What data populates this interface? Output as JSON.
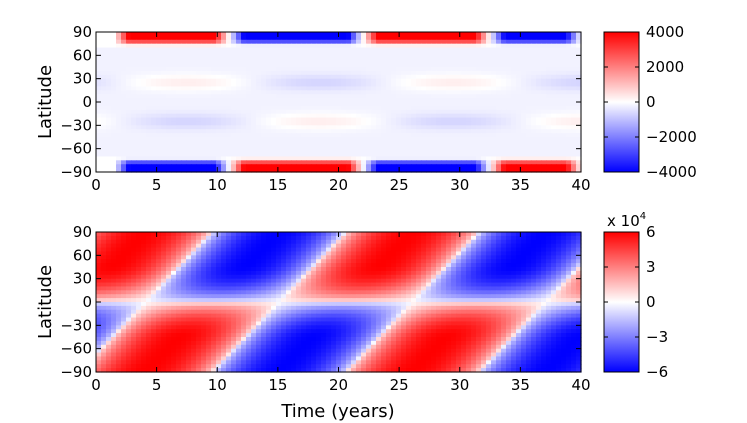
{
  "chart_data": [
    {
      "type": "heatmap",
      "ylabel": "Latitude",
      "xlabel": "",
      "xlim": [
        0,
        40
      ],
      "ylim": [
        -90,
        90
      ],
      "x_ticks": [
        "0",
        "5",
        "10",
        "15",
        "20",
        "25",
        "30",
        "35",
        "40"
      ],
      "y_ticks": [
        "90",
        "60",
        "30",
        "0",
        "−30",
        "−60",
        "−90"
      ],
      "colorbar": {
        "range": [
          -4000,
          4000
        ],
        "ticks": [
          "4000",
          "2000",
          "0",
          "−2000",
          "−4000"
        ],
        "multiplier": ""
      },
      "description_values": {
        "polar_band_north_sign_by_interval": [
          {
            "x0": 1.5,
            "x1": 11,
            "value": 4000
          },
          {
            "x0": 11,
            "x1": 22,
            "value": -4000
          },
          {
            "x0": 22,
            "x1": 32.5,
            "value": 4000
          },
          {
            "x0": 32.5,
            "x1": 40,
            "value": -4000
          }
        ],
        "polar_band_south_sign_by_interval": [
          {
            "x0": 1.5,
            "x1": 11,
            "value": -4000
          },
          {
            "x0": 11,
            "x1": 22,
            "value": 4000
          },
          {
            "x0": 22,
            "x1": 32.5,
            "value": -4000
          },
          {
            "x0": 32.5,
            "x1": 40,
            "value": 4000
          }
        ]
      }
    },
    {
      "type": "heatmap",
      "ylabel": "Latitude",
      "xlabel": "Time (years)",
      "xlim": [
        0,
        40
      ],
      "ylim": [
        -90,
        90
      ],
      "x_ticks": [
        "0",
        "5",
        "10",
        "15",
        "20",
        "25",
        "30",
        "35",
        "40"
      ],
      "y_ticks": [
        "90",
        "60",
        "30",
        "0",
        "−30",
        "−60",
        "−90"
      ],
      "colorbar": {
        "range": [
          -6,
          6
        ],
        "ticks": [
          "6",
          "3",
          "0",
          "−3",
          "−6"
        ],
        "multiplier": "x 10",
        "multiplier_exponent": "4"
      },
      "cycle_period_years": 22,
      "peak_value": 60000
    }
  ],
  "colors": {
    "positive": "#ff0000",
    "negative": "#0000ff",
    "zero": "#ffffff"
  }
}
